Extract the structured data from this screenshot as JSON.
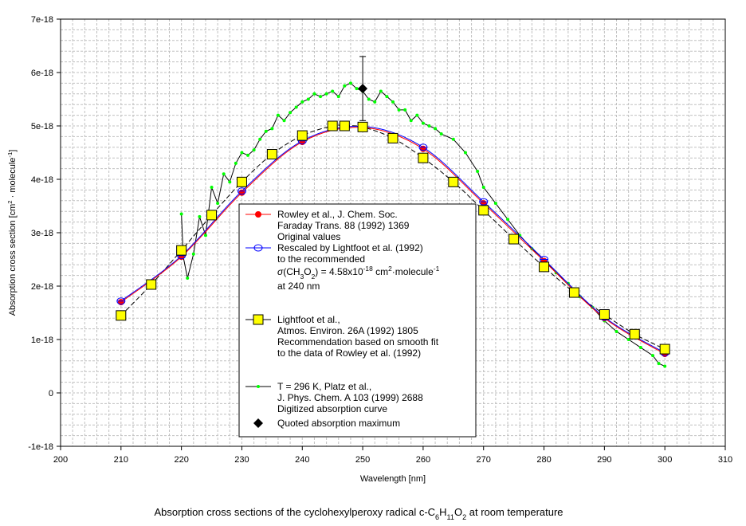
{
  "chart_data": {
    "type": "line",
    "xlabel": "Wavelength [nm]",
    "ylabel_parts": [
      "Absorption cross section [cm",
      "2",
      " · molecule",
      "-1",
      "]"
    ],
    "caption_parts": [
      "Absorption cross sections of the cyclohexylperoxy radical c-C",
      "6",
      "H",
      "11",
      "O",
      "2",
      "  at room temperature"
    ],
    "xlim": [
      200,
      310
    ],
    "ylim": [
      -1e-18,
      7e-18
    ],
    "xticks": [
      200,
      210,
      220,
      230,
      240,
      250,
      260,
      270,
      280,
      290,
      300,
      310
    ],
    "yticks": [
      -1e-18,
      0,
      1e-18,
      2e-18,
      3e-18,
      4e-18,
      5e-18,
      6e-18,
      7e-18
    ],
    "ytick_labels": [
      "-1e-18",
      "0",
      "1e-18",
      "2e-18",
      "3e-18",
      "4e-18",
      "5e-18",
      "6e-18",
      "7e-18"
    ],
    "grid": true,
    "legend_position": "center-bottom",
    "series": [
      {
        "name": "Rowley et al., J. Chem. Soc. Faraday Trans. 88 (1992) 1369 Original values",
        "color": "#ff0000",
        "marker": "filled-circle",
        "x": [
          210,
          220,
          230,
          240,
          250,
          260,
          270,
          280,
          290,
          300
        ],
        "y": [
          1.7e-18,
          2.55e-18,
          3.75e-18,
          4.7e-18,
          4.97e-18,
          4.57e-18,
          3.55e-18,
          2.47e-18,
          1.4e-18,
          7.3e-19
        ]
      },
      {
        "name": "Rescaled by Lightfoot et al. (1992)",
        "color": "#0000ff",
        "marker": "open-circle",
        "x": [
          210,
          220,
          230,
          240,
          250,
          260,
          270,
          280,
          290,
          300
        ],
        "y": [
          1.72e-18,
          2.57e-18,
          3.78e-18,
          4.72e-18,
          4.99e-18,
          4.6e-18,
          3.58e-18,
          2.5e-18,
          1.42e-18,
          7.5e-19
        ]
      },
      {
        "name": "Lightfoot et al., Atmos. Environ. 26A (1992) 1805",
        "color": "#000000",
        "fill": "#ffff00",
        "marker": "square",
        "dashed": true,
        "x": [
          210,
          215,
          220,
          225,
          230,
          235,
          240,
          245,
          247,
          250,
          255,
          260,
          265,
          270,
          275,
          280,
          285,
          290,
          295,
          300
        ],
        "y": [
          1.45e-18,
          2.03e-18,
          2.67e-18,
          3.33e-18,
          3.95e-18,
          4.47e-18,
          4.82e-18,
          5e-18,
          5e-18,
          4.98e-18,
          4.77e-18,
          4.4e-18,
          3.95e-18,
          3.42e-18,
          2.88e-18,
          2.36e-18,
          1.88e-18,
          1.47e-18,
          1.1e-18,
          8.2e-19
        ]
      },
      {
        "name": "T = 296 K, Platz et al., J. Phys. Chem. A 103 (1999) 2688",
        "color": "#000000",
        "marker_color": "#00ff00",
        "marker": "small-dot",
        "x": [
          220,
          220.3,
          221,
          222,
          223,
          224,
          225,
          226,
          227,
          228,
          229,
          230,
          231,
          232,
          233,
          234,
          235,
          236,
          237,
          238,
          239,
          240,
          241,
          242,
          243,
          244,
          245,
          246,
          247,
          248,
          249,
          250,
          251,
          252,
          253,
          254,
          255,
          256,
          257,
          258,
          259,
          260,
          261,
          262,
          263,
          265,
          267,
          269,
          270,
          272,
          274,
          276,
          278,
          280,
          282,
          284,
          286,
          288,
          290,
          292,
          294,
          296,
          298,
          299,
          300
        ],
        "y": [
          3.35e-18,
          2.55e-18,
          2.15e-18,
          2.6e-18,
          3.3e-18,
          2.95e-18,
          3.85e-18,
          3.55e-18,
          4.1e-18,
          3.95e-18,
          4.3e-18,
          4.5e-18,
          4.45e-18,
          4.55e-18,
          4.75e-18,
          4.9e-18,
          4.95e-18,
          5.2e-18,
          5.1e-18,
          5.25e-18,
          5.35e-18,
          5.45e-18,
          5.5e-18,
          5.6e-18,
          5.55e-18,
          5.6e-18,
          5.65e-18,
          5.55e-18,
          5.75e-18,
          5.8e-18,
          5.7e-18,
          5.65e-18,
          5.5e-18,
          5.45e-18,
          5.65e-18,
          5.55e-18,
          5.45e-18,
          5.3e-18,
          5.3e-18,
          5.1e-18,
          5.2e-18,
          5.05e-18,
          5e-18,
          4.95e-18,
          4.85e-18,
          4.75e-18,
          4.5e-18,
          4.15e-18,
          3.85e-18,
          3.55e-18,
          3.25e-18,
          2.95e-18,
          2.7e-18,
          2.5e-18,
          2.25e-18,
          2.05e-18,
          1.8e-18,
          1.6e-18,
          1.35e-18,
          1.15e-18,
          1e-18,
          8.5e-19,
          7e-19,
          5.5e-19,
          5e-19
        ]
      },
      {
        "name": "Quoted absorption maximum",
        "color": "#000000",
        "marker": "diamond",
        "x": [
          250
        ],
        "y": [
          5.7e-18
        ],
        "error": [
          6e-19
        ]
      }
    ],
    "legend": [
      {
        "lines": [
          "Rowley et al., J. Chem. Soc.",
          "Faraday Trans. 88 (1992) 1369",
          "Original values"
        ]
      },
      {
        "lines": [
          "Rescaled by Lightfoot et al. (1992)",
          "to the recommended"
        ],
        "formula_parts": [
          "σ",
          "(CH",
          "3",
          "O",
          "2",
          ") = 4.58x10",
          "-18",
          " cm",
          "2",
          "·molecule",
          "-1"
        ],
        "last": "at 240 nm"
      },
      {
        "lines": [
          "Lightfoot et al.,",
          "Atmos. Environ. 26A (1992) 1805",
          "Recommendation based on smooth fit",
          "to the data of Rowley et al. (1992)"
        ]
      },
      {
        "lines": [
          "T = 296 K, Platz et al.,",
          "J. Phys. Chem. A 103 (1999) 2688",
          "Digitized absorption curve"
        ]
      },
      {
        "lines": [
          "Quoted absorption maximum"
        ]
      }
    ]
  }
}
